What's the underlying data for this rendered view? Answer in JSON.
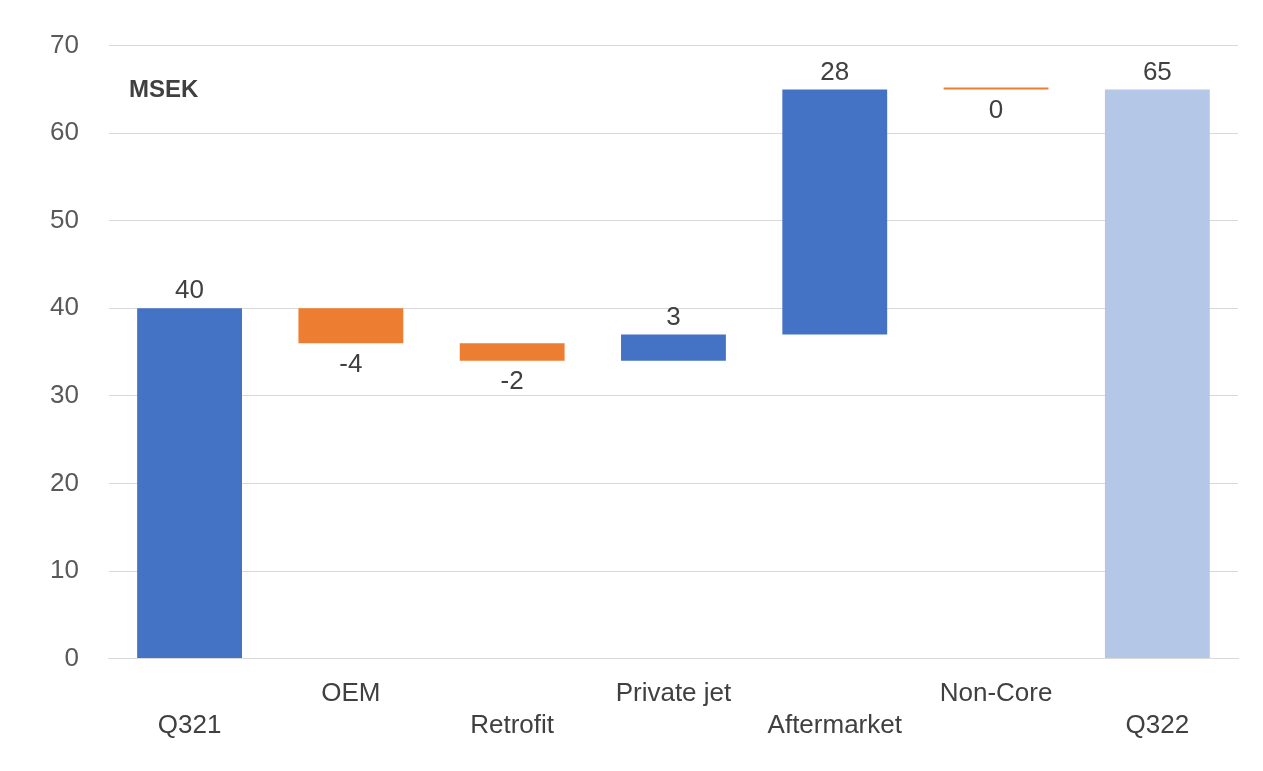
{
  "chart_data": {
    "type": "bar",
    "categories": [
      "Q321",
      "OEM",
      "Retrofit",
      "Private jet",
      "Aftermarket",
      "Non-Core",
      "Q322"
    ],
    "values": [
      40,
      -4,
      -2,
      3,
      28,
      0,
      65
    ],
    "base": [
      0,
      40,
      36,
      34,
      37,
      65,
      0
    ],
    "colors": [
      "#4472c4",
      "#ed7d31",
      "#ed7d31",
      "#4472c4",
      "#4472c4",
      "#ed7d31",
      "#b4c7e7"
    ],
    "ylim": [
      0,
      70
    ],
    "yticks": [
      0,
      10,
      20,
      30,
      40,
      50,
      60,
      70
    ],
    "grid": "y",
    "legend": false,
    "data_labels": true,
    "annotations": [
      "MSEK"
    ]
  }
}
